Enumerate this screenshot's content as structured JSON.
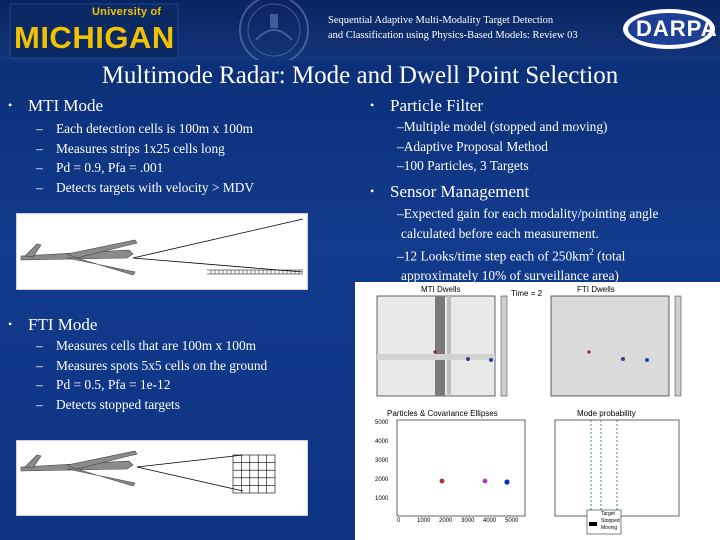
{
  "header": {
    "university_top": "University of",
    "university_name": "MICHIGAN",
    "title_line1": "Sequential Adaptive Multi-Modality Target Detection",
    "title_line2": "and Classification using Physics-Based Models: Review 03",
    "agency": "DARPA"
  },
  "slide_title": "Multimode Radar: Mode and Dwell Point Selection",
  "left": {
    "mti": {
      "heading": "MTI Mode",
      "items": [
        "Each detection cells is 100m x 100m",
        "Measures strips 1x25 cells long",
        "Pd = 0.9, Pfa = .001",
        "Detects targets with velocity > MDV"
      ]
    },
    "fti": {
      "heading": "FTI Mode",
      "items": [
        "Measures cells that are 100m x 100m",
        "Measures spots 5x5 cells on the ground",
        "Pd = 0.5, Pfa = 1e-12",
        "Detects stopped targets"
      ]
    }
  },
  "right": {
    "particle_filter": {
      "heading": "Particle Filter",
      "items": [
        "Multiple model (stopped and moving)",
        "Adaptive Proposal Method",
        "100 Particles, 3 Targets"
      ]
    },
    "sensor_management": {
      "heading": "Sensor Management",
      "line1": "Expected gain for each modality/pointing angle",
      "line2": "calculated before each measurement.",
      "line3": "12 Looks/time step each of 250km",
      "line3_sup": "2",
      "line3_end": " (total",
      "line4": "approximately 10% of surveillance area)"
    }
  },
  "plots": {
    "mti_title": "MTI Dwells",
    "time_label": "Time = 2",
    "fti_title": "FTI Dwells",
    "particles_title": "Particles & Covariance Ellipses",
    "mode_title": "Mode probability",
    "y_ticks": [
      "5000",
      "4000",
      "3000",
      "2000",
      "1000"
    ],
    "x_ticks": [
      "0",
      "1000",
      "2000",
      "3000",
      "4000",
      "5000"
    ],
    "legend_items": [
      "Target",
      "Stopped",
      "Moving"
    ]
  },
  "colors": {
    "background": "#123b8c",
    "accent": "#f2c200"
  }
}
